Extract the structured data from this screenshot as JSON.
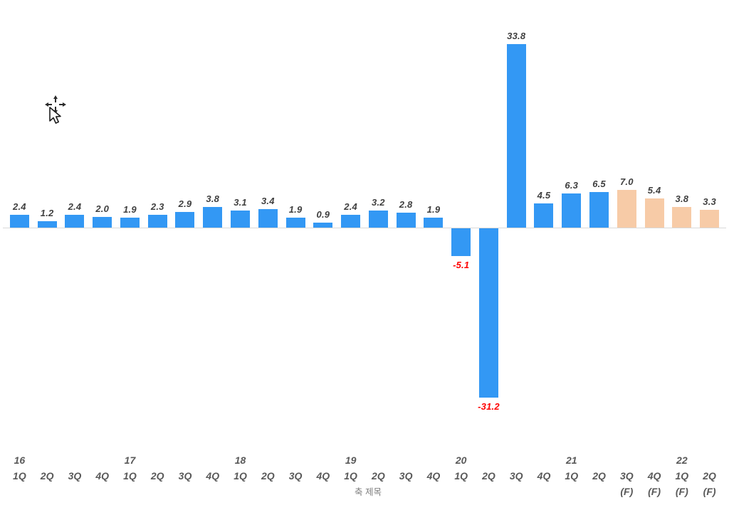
{
  "chart_data": {
    "type": "bar",
    "title": "",
    "xlabel": "축 제목",
    "ylabel": "",
    "ylim": [
      -35,
      40
    ],
    "grid": false,
    "legend": false,
    "colors": {
      "actual_bar": "#3398f4",
      "forecast_bar": "#f7cba7",
      "value_label": "#3f3f3f",
      "negative_value_label": "#ff0000",
      "axis_label": "#595959",
      "axis_line": "#d9d9d9"
    },
    "categories": [
      "16 1Q",
      "2Q",
      "3Q",
      "4Q",
      "17 1Q",
      "2Q",
      "3Q",
      "4Q",
      "18 1Q",
      "2Q",
      "3Q",
      "4Q",
      "19 1Q",
      "2Q",
      "3Q",
      "4Q",
      "20 1Q",
      "2Q",
      "3Q",
      "4Q",
      "21 1Q",
      "2Q",
      "3Q (F)",
      "4Q (F)",
      "22 1Q (F)",
      "2Q (F)"
    ],
    "values": [
      2.4,
      1.2,
      2.4,
      2.0,
      1.9,
      2.3,
      2.9,
      3.8,
      3.1,
      3.4,
      1.9,
      0.9,
      2.4,
      3.2,
      2.8,
      1.9,
      -5.1,
      -31.2,
      33.8,
      4.5,
      6.3,
      6.5,
      7.0,
      5.4,
      3.8,
      3.3
    ],
    "points": [
      {
        "year": "16",
        "quarter": "1Q",
        "forecast": false,
        "value": 2.4,
        "label": "2.4"
      },
      {
        "year": "",
        "quarter": "2Q",
        "forecast": false,
        "value": 1.2,
        "label": "1.2"
      },
      {
        "year": "",
        "quarter": "3Q",
        "forecast": false,
        "value": 2.4,
        "label": "2.4"
      },
      {
        "year": "",
        "quarter": "4Q",
        "forecast": false,
        "value": 2.0,
        "label": "2.0"
      },
      {
        "year": "17",
        "quarter": "1Q",
        "forecast": false,
        "value": 1.9,
        "label": "1.9"
      },
      {
        "year": "",
        "quarter": "2Q",
        "forecast": false,
        "value": 2.3,
        "label": "2.3"
      },
      {
        "year": "",
        "quarter": "3Q",
        "forecast": false,
        "value": 2.9,
        "label": "2.9"
      },
      {
        "year": "",
        "quarter": "4Q",
        "forecast": false,
        "value": 3.8,
        "label": "3.8"
      },
      {
        "year": "18",
        "quarter": "1Q",
        "forecast": false,
        "value": 3.1,
        "label": "3.1"
      },
      {
        "year": "",
        "quarter": "2Q",
        "forecast": false,
        "value": 3.4,
        "label": "3.4"
      },
      {
        "year": "",
        "quarter": "3Q",
        "forecast": false,
        "value": 1.9,
        "label": "1.9"
      },
      {
        "year": "",
        "quarter": "4Q",
        "forecast": false,
        "value": 0.9,
        "label": "0.9"
      },
      {
        "year": "19",
        "quarter": "1Q",
        "forecast": false,
        "value": 2.4,
        "label": "2.4"
      },
      {
        "year": "",
        "quarter": "2Q",
        "forecast": false,
        "value": 3.2,
        "label": "3.2"
      },
      {
        "year": "",
        "quarter": "3Q",
        "forecast": false,
        "value": 2.8,
        "label": "2.8"
      },
      {
        "year": "",
        "quarter": "4Q",
        "forecast": false,
        "value": 1.9,
        "label": "1.9"
      },
      {
        "year": "20",
        "quarter": "1Q",
        "forecast": false,
        "value": -5.1,
        "label": "-5.1"
      },
      {
        "year": "",
        "quarter": "2Q",
        "forecast": false,
        "value": -31.2,
        "label": "-31.2"
      },
      {
        "year": "",
        "quarter": "3Q",
        "forecast": false,
        "value": 33.8,
        "label": "33.8"
      },
      {
        "year": "",
        "quarter": "4Q",
        "forecast": false,
        "value": 4.5,
        "label": "4.5"
      },
      {
        "year": "21",
        "quarter": "1Q",
        "forecast": false,
        "value": 6.3,
        "label": "6.3"
      },
      {
        "year": "",
        "quarter": "2Q",
        "forecast": false,
        "value": 6.5,
        "label": "6.5"
      },
      {
        "year": "",
        "quarter": "3Q",
        "forecast": true,
        "value": 7.0,
        "label": "7.0",
        "suffix": "(F)"
      },
      {
        "year": "",
        "quarter": "4Q",
        "forecast": true,
        "value": 5.4,
        "label": "5.4",
        "suffix": "(F)"
      },
      {
        "year": "22",
        "quarter": "1Q",
        "forecast": true,
        "value": 3.8,
        "label": "3.8",
        "suffix": "(F)"
      },
      {
        "year": "",
        "quarter": "2Q",
        "forecast": true,
        "value": 3.3,
        "label": "3.3",
        "suffix": "(F)"
      }
    ]
  },
  "cursor": {
    "name": "move-cursor"
  }
}
